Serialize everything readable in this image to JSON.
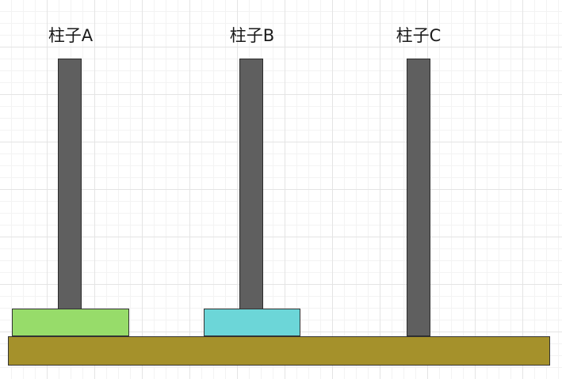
{
  "pegs": [
    {
      "label": "柱子A"
    },
    {
      "label": "柱子B"
    },
    {
      "label": "柱子C"
    }
  ],
  "disks": [
    {
      "peg": "柱子A",
      "color": "#97dc6a"
    },
    {
      "peg": "柱子B",
      "color": "#6cd6d8"
    }
  ],
  "colors": {
    "pole": "#5f5f5f",
    "base": "#a5912b",
    "grid": "#e4e4e4"
  }
}
